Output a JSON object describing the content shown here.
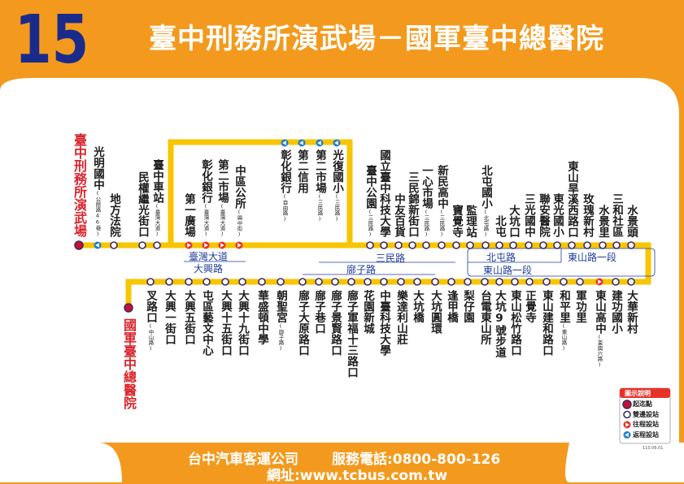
{
  "header": {
    "route": "15",
    "title": "臺中刑務所演武場－國軍臺中總醫院"
  },
  "stops": {
    "upper": [
      {
        "name": "臺中刑務所演武場",
        "marker": "terminal"
      },
      {
        "name": "光明國中",
        "note": "(公館路46巷)",
        "marker": "return"
      },
      {
        "name": "地方法院",
        "marker": "both"
      },
      {
        "name": "民權繼光街口",
        "marker": "both"
      },
      {
        "name": "臺中車站",
        "note": "(臺灣大道)",
        "marker": "both"
      },
      {
        "name": "第一廣場",
        "marker": "outbound"
      },
      {
        "name": "彰化銀行",
        "note": "(臺灣大道)",
        "marker": "outbound"
      },
      {
        "name": "第二市場",
        "note": "(臺灣大道)",
        "marker": "outbound"
      },
      {
        "name": "中區公所",
        "note": "(興中街)",
        "marker": "outbound"
      },
      {
        "name": "臺中公園",
        "note": "(三民路)",
        "marker": "both"
      },
      {
        "name": "國立臺中科技大學",
        "marker": "both"
      },
      {
        "name": "中友百貨",
        "marker": "both"
      },
      {
        "name": "三民錦新街口",
        "marker": "both"
      },
      {
        "name": "一心市場",
        "note": "(三民路)",
        "marker": "both"
      },
      {
        "name": "新民高中",
        "note": "(三民路)",
        "marker": "both"
      },
      {
        "name": "寶覺寺",
        "marker": "both"
      },
      {
        "name": "監理站",
        "marker": "both"
      },
      {
        "name": "北屯國小",
        "note": "(北屯路)",
        "marker": "both"
      },
      {
        "name": "北屯",
        "marker": "both"
      },
      {
        "name": "大坑口",
        "marker": "both"
      },
      {
        "name": "三光國中",
        "marker": "both"
      },
      {
        "name": "聯安醫院",
        "marker": "both"
      },
      {
        "name": "東光國小",
        "marker": "both"
      },
      {
        "name": "東山旱溪西路口",
        "marker": "both"
      },
      {
        "name": "玫瑰新村",
        "marker": "both"
      },
      {
        "name": "水景里",
        "marker": "both"
      },
      {
        "name": "三和社區",
        "marker": "both"
      },
      {
        "name": "水景頭",
        "marker": "both"
      }
    ],
    "loop": [
      {
        "name": "彰化銀行",
        "note": "(自由路)",
        "marker": "return"
      },
      {
        "name": "第二信用",
        "marker": "return"
      },
      {
        "name": "第二市場",
        "note": "(三民路)",
        "marker": "return"
      },
      {
        "name": "光復國小",
        "note": "(三民路)",
        "marker": "return"
      }
    ],
    "lower": [
      {
        "name": "國軍臺中總醫院",
        "marker": "terminal"
      },
      {
        "name": "叉路口",
        "note": "(中山路)",
        "marker": "both"
      },
      {
        "name": "大興一街口",
        "marker": "both"
      },
      {
        "name": "大興五街口",
        "marker": "both"
      },
      {
        "name": "屯區藝文中心",
        "marker": "both"
      },
      {
        "name": "大興十五街口",
        "marker": "both"
      },
      {
        "name": "大興十九街口",
        "marker": "both"
      },
      {
        "name": "華盛頓中學",
        "marker": "both"
      },
      {
        "name": "朝聖宮",
        "note": "(廍子路)",
        "marker": "both"
      },
      {
        "name": "廍子大原路口",
        "marker": "both"
      },
      {
        "name": "廍子巷口",
        "marker": "both"
      },
      {
        "name": "廍子景賢路口",
        "marker": "both"
      },
      {
        "name": "廍子軍福十三路口",
        "marker": "both"
      },
      {
        "name": "花園新城",
        "marker": "both"
      },
      {
        "name": "中臺科技大學",
        "marker": "both"
      },
      {
        "name": "樂達利山莊",
        "marker": "both"
      },
      {
        "name": "大坑橋",
        "marker": "both"
      },
      {
        "name": "大坑圓環",
        "marker": "both"
      },
      {
        "name": "逢甲橋",
        "marker": "both"
      },
      {
        "name": "梨仔園",
        "marker": "both"
      },
      {
        "name": "台電東山所",
        "marker": "both"
      },
      {
        "name": "大坑9號步道",
        "marker": "both"
      },
      {
        "name": "東山松竹路口",
        "marker": "both"
      },
      {
        "name": "正覺寺",
        "marker": "both"
      },
      {
        "name": "東山建和路口",
        "marker": "both"
      },
      {
        "name": "和平里",
        "note": "(東山路)",
        "marker": "both"
      },
      {
        "name": "軍功里",
        "marker": "both"
      },
      {
        "name": "東山高中",
        "note": "(東興六路)",
        "marker": "outbound"
      },
      {
        "name": "建功國小",
        "marker": "both"
      },
      {
        "name": "大華新村",
        "marker": "both"
      }
    ]
  },
  "roads": [
    "臺灣大道",
    "大興路",
    "三民路",
    "廍子路",
    "北屯路",
    "東山路一段",
    "東山路一段"
  ],
  "legend": {
    "title": "圖示說明",
    "items": [
      {
        "label": "起迄點",
        "marker": "terminal"
      },
      {
        "label": "雙邊設站",
        "marker": "both"
      },
      {
        "label": "往程設站",
        "marker": "outbound"
      },
      {
        "label": "返程設站",
        "marker": "return"
      }
    ]
  },
  "date": "110.06.01",
  "footer": {
    "company": "台中汽車客運公司",
    "phone": "服務電話:0800-800-126",
    "website": "網址:www.tcbus.com.tw"
  }
}
